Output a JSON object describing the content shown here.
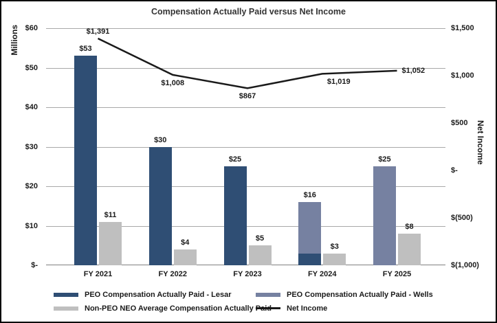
{
  "chart_data": {
    "type": "bar+line",
    "title": "Compensation Actually Paid versus Net Income",
    "categories": [
      "FY 2021",
      "FY 2022",
      "FY 2023",
      "FY 2024",
      "FY 2025"
    ],
    "left_axis": {
      "title": "Millions",
      "min": 0,
      "max": 60,
      "tick_labels": [
        "$60",
        "$50",
        "$40",
        "$30",
        "$20",
        "$10",
        "$-"
      ],
      "tick_values": [
        60,
        50,
        40,
        30,
        20,
        10,
        0
      ]
    },
    "right_axis": {
      "title": "Net Income",
      "min": -1000,
      "max": 1500,
      "tick_labels": [
        "$1,500",
        "$1,000",
        "$500",
        "$-",
        "$(500)",
        "$(1,000)"
      ],
      "tick_values": [
        1500,
        1000,
        500,
        0,
        -500,
        -1000
      ]
    },
    "bar_series": [
      {
        "key": "lesar",
        "name": "PEO Compensation Actually Paid - Lesar",
        "color": "#2F4E74",
        "values": [
          53,
          30,
          25,
          3,
          0
        ]
      },
      {
        "key": "wells",
        "name": "PEO Compensation Actually Paid - Wells",
        "color": "#7681A1",
        "values": [
          0,
          0,
          0,
          13,
          25
        ]
      },
      {
        "key": "nonpeo",
        "name": "Non-PEO NEO Average Compensation Actually Paid",
        "color": "#BFBFBF",
        "values": [
          11,
          4,
          5,
          3,
          8
        ]
      }
    ],
    "bar_labels": {
      "peo_stack": [
        "$53",
        "$30",
        "$25",
        "$16",
        "$25"
      ],
      "nonpeo": [
        "$11",
        "$4",
        "$5",
        "$3",
        "$8"
      ]
    },
    "line_series": {
      "name": "Net Income",
      "color": "#1A1A1A",
      "axis": "right",
      "values": [
        1391,
        1008,
        867,
        1019,
        1052
      ],
      "labels": [
        "$1,391",
        "$1,008",
        "$867",
        "$1,019",
        "$1,052"
      ],
      "label_placement": [
        "above",
        "below",
        "below",
        "below-right",
        "right"
      ]
    },
    "grid_color": "#A8A8A8",
    "axis_line_color": "#7F7F7F",
    "legend_position": "bottom"
  }
}
